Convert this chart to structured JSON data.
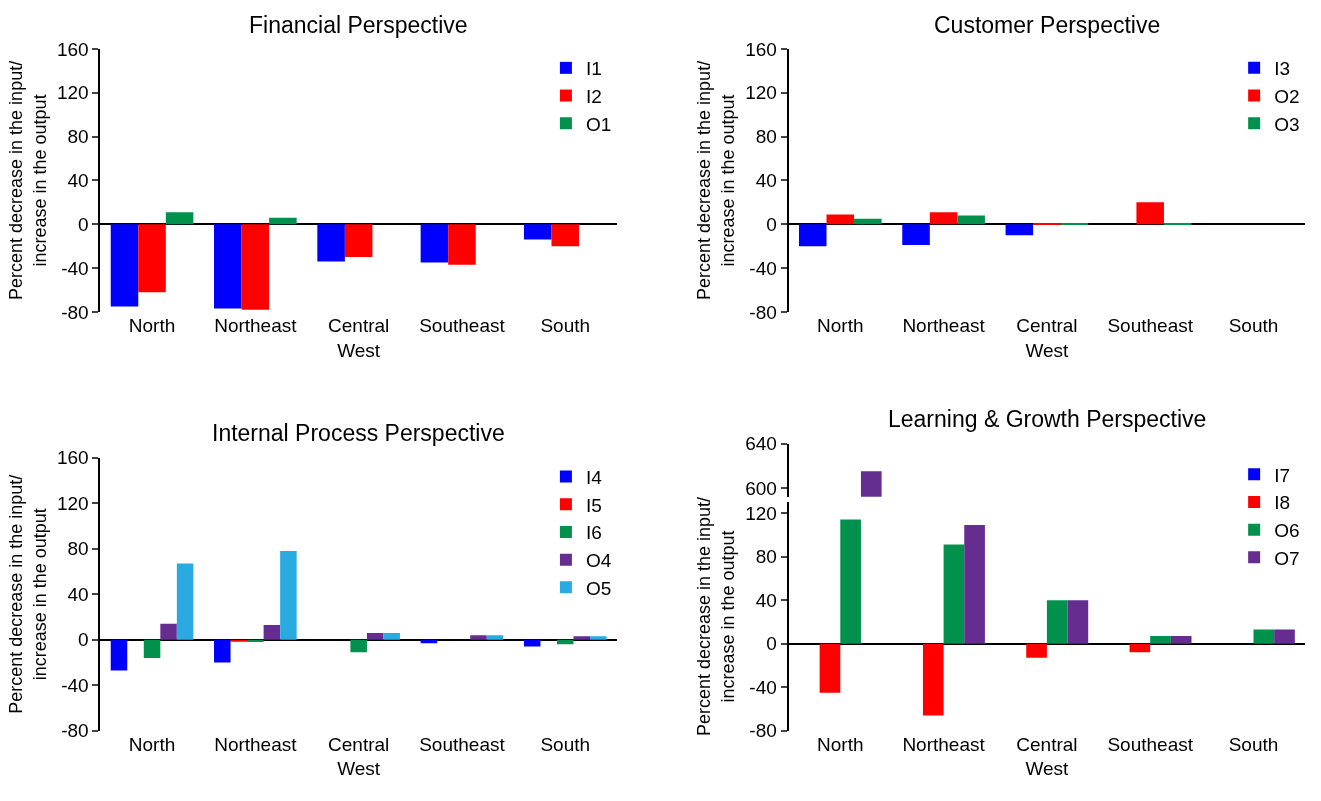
{
  "chart_data": [
    {
      "type": "bar",
      "title": "Financial Perspective",
      "ylabel": "Percent decrease in the input/\nincrease in the output",
      "categories": [
        "North",
        "Northeast",
        "Central\nWest",
        "Southeast",
        "South"
      ],
      "series": [
        {
          "name": "I1",
          "color": "#0000ff",
          "values": [
            -75,
            -77,
            -34,
            -35,
            -14
          ]
        },
        {
          "name": "I2",
          "color": "#ff0000",
          "values": [
            -62,
            -78,
            -30,
            -37,
            -20
          ]
        },
        {
          "name": "O1",
          "color": "#00914c",
          "values": [
            11,
            6,
            0,
            0,
            0
          ]
        }
      ],
      "ylim": [
        -80,
        160
      ],
      "yticks": [
        -80,
        -40,
        0,
        40,
        80,
        120,
        160
      ],
      "legend": "top right"
    },
    {
      "type": "bar",
      "title": "Customer Perspective",
      "ylabel": "Percent decrease in the input/\nincrease in the output",
      "categories": [
        "North",
        "Northeast",
        "Central\nWest",
        "Southeast",
        "South"
      ],
      "series": [
        {
          "name": "I3",
          "color": "#0000ff",
          "values": [
            -20,
            -19,
            -10,
            0,
            0
          ]
        },
        {
          "name": "O2",
          "color": "#ff0000",
          "values": [
            9,
            11,
            1,
            20,
            0
          ]
        },
        {
          "name": "O3",
          "color": "#00914c",
          "values": [
            5,
            8,
            1,
            1,
            0
          ]
        }
      ],
      "ylim": [
        -80,
        160
      ],
      "yticks": [
        -80,
        -40,
        0,
        40,
        80,
        120,
        160
      ],
      "legend": "top right"
    },
    {
      "type": "bar",
      "title": "Internal Process Perspective",
      "ylabel": "Percent decrease in the input/\nincrease in the output",
      "categories": [
        "North",
        "Northeast",
        "Central\nWest",
        "Southeast",
        "South"
      ],
      "series": [
        {
          "name": "I4",
          "color": "#0000ff",
          "values": [
            -27,
            -20,
            0,
            -3,
            -6
          ]
        },
        {
          "name": "I5",
          "color": "#ff0000",
          "values": [
            0,
            -1,
            0,
            0,
            0
          ]
        },
        {
          "name": "I6",
          "color": "#00914c",
          "values": [
            -16,
            -2,
            -11,
            0,
            -4
          ]
        },
        {
          "name": "O4",
          "color": "#662d91",
          "values": [
            14,
            13,
            6,
            4,
            3
          ]
        },
        {
          "name": "O5",
          "color": "#29abe2",
          "values": [
            67,
            78,
            6,
            4,
            3
          ]
        }
      ],
      "ylim": [
        -80,
        160
      ],
      "yticks": [
        -80,
        -40,
        0,
        40,
        80,
        120,
        160
      ],
      "legend": "top right"
    },
    {
      "type": "bar",
      "title": "Learning & Growth Perspective",
      "categories": [
        null,
        null,
        null,
        null,
        null
      ],
      "series": [
        {
          "color": "#0000ff",
          "values": [
            null,
            null,
            null,
            null,
            null
          ]
        },
        {
          "color": "#ff0000",
          "values": [
            null,
            null,
            null,
            null,
            null
          ]
        },
        {
          "color": "#00914c",
          "values": [
            null,
            null,
            null,
            null,
            null
          ]
        },
        {
          "color": "#662d91",
          "values": [
            615,
            null,
            null,
            null,
            null
          ]
        }
      ],
      "ylim": [
        592,
        640
      ],
      "yticks": [
        600,
        640
      ],
      "tick_labels": "y"
    },
    {
      "type": "bar",
      "ylabel": "Percent decrease in the input/\nincrease in the output",
      "categories": [
        "North",
        "Northeast",
        "Central\nWest",
        "Southeast",
        "South"
      ],
      "series": [
        {
          "name": "I7",
          "color": "#0000ff",
          "values": [
            0,
            0,
            0,
            0,
            0
          ]
        },
        {
          "name": "I8",
          "color": "#ff0000",
          "values": [
            -45,
            -66,
            -13,
            -8,
            0
          ]
        },
        {
          "name": "O6",
          "color": "#00914c",
          "values": [
            114,
            91,
            40,
            7,
            13
          ]
        },
        {
          "name": "O7",
          "color": "#662d91",
          "values": [
            null,
            109,
            40,
            7,
            13
          ]
        }
      ],
      "ylim": [
        -80,
        130
      ],
      "yticks": [
        -80,
        -40,
        0,
        40,
        80,
        120
      ],
      "legend": "top right"
    }
  ]
}
